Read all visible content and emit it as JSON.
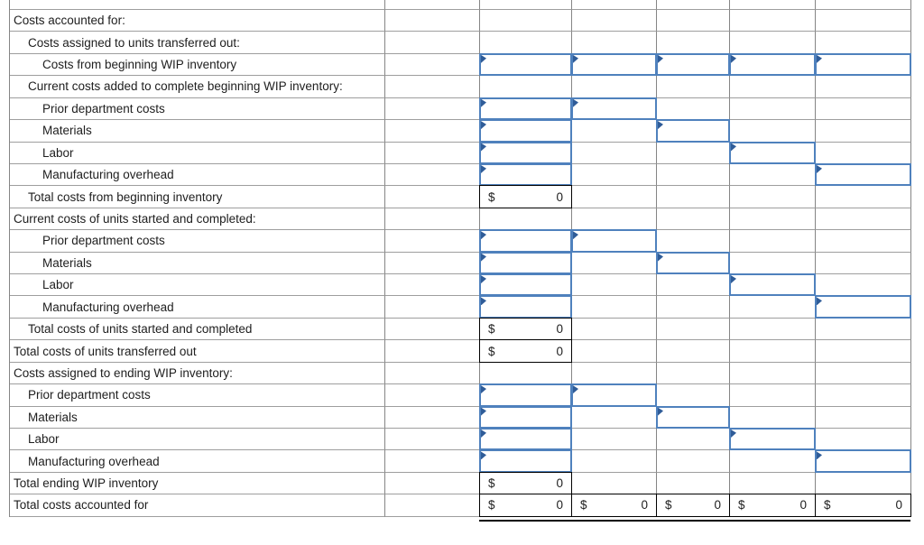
{
  "colors": {
    "input_border": "#4f81bd",
    "input_flag": "#2f5c98",
    "grid_v": "#858585",
    "grid_h": "#9e9e9e",
    "text": "#202020",
    "total_border": "#000000"
  },
  "table": {
    "rows": [
      {
        "type": "blank",
        "indent": 0,
        "label": ""
      },
      {
        "type": "section",
        "indent": 0,
        "label": "Costs accounted for:"
      },
      {
        "type": "section",
        "indent": 1,
        "label": "Costs assigned to units transferred out:"
      },
      {
        "type": "input",
        "indent": 2,
        "label": "Costs from beginning WIP inventory",
        "inputs": [
          0,
          1,
          2,
          3,
          4
        ]
      },
      {
        "type": "section",
        "indent": 1,
        "label": "Current costs added to complete beginning WIP inventory:"
      },
      {
        "type": "input",
        "indent": 2,
        "label": "Prior department costs",
        "inputs": [
          0,
          1
        ]
      },
      {
        "type": "input",
        "indent": 2,
        "label": "Materials",
        "inputs": [
          0,
          2
        ]
      },
      {
        "type": "input",
        "indent": 2,
        "label": "Labor",
        "inputs": [
          0,
          3
        ]
      },
      {
        "type": "input",
        "indent": 2,
        "label": "Manufacturing overhead",
        "inputs": [
          0,
          4
        ]
      },
      {
        "type": "total",
        "indent": 1,
        "label": "Total costs from beginning inventory",
        "totals": [
          {
            "col": 0,
            "currency": "$",
            "value": "0"
          }
        ]
      },
      {
        "type": "section",
        "indent": 0,
        "label": "Current costs of units started and completed:"
      },
      {
        "type": "input",
        "indent": 2,
        "label": "Prior department costs",
        "inputs": [
          0,
          1
        ]
      },
      {
        "type": "input",
        "indent": 2,
        "label": "Materials",
        "inputs": [
          0,
          2
        ]
      },
      {
        "type": "input",
        "indent": 2,
        "label": "Labor",
        "inputs": [
          0,
          3
        ]
      },
      {
        "type": "input",
        "indent": 2,
        "label": "Manufacturing overhead",
        "inputs": [
          0,
          4
        ]
      },
      {
        "type": "total",
        "indent": 1,
        "label": "Total costs of units started and completed",
        "totals": [
          {
            "col": 0,
            "currency": "$",
            "value": "0"
          }
        ]
      },
      {
        "type": "total",
        "indent": 0,
        "label": "Total costs of units transferred out",
        "totals": [
          {
            "col": 0,
            "currency": "$",
            "value": "0"
          }
        ]
      },
      {
        "type": "section",
        "indent": 0,
        "label": "Costs assigned to ending WIP inventory:"
      },
      {
        "type": "input",
        "indent": 1,
        "label": "Prior department costs",
        "inputs": [
          0,
          1
        ]
      },
      {
        "type": "input",
        "indent": 1,
        "label": "Materials",
        "inputs": [
          0,
          2
        ]
      },
      {
        "type": "input",
        "indent": 1,
        "label": "Labor",
        "inputs": [
          0,
          3
        ]
      },
      {
        "type": "input",
        "indent": 1,
        "label": "Manufacturing overhead",
        "inputs": [
          0,
          4
        ]
      },
      {
        "type": "total",
        "indent": 0,
        "label": "Total ending WIP inventory",
        "totals": [
          {
            "col": 0,
            "currency": "$",
            "value": "0"
          }
        ]
      },
      {
        "type": "grand_total",
        "indent": 0,
        "label": "Total costs accounted for",
        "totals": [
          {
            "col": 0,
            "currency": "$",
            "value": "0"
          },
          {
            "col": 1,
            "currency": "$",
            "value": "0"
          },
          {
            "col": 2,
            "currency": "$",
            "value": "0"
          },
          {
            "col": 3,
            "currency": "$",
            "value": "0"
          },
          {
            "col": 4,
            "currency": "$",
            "value": "0"
          }
        ]
      }
    ]
  }
}
